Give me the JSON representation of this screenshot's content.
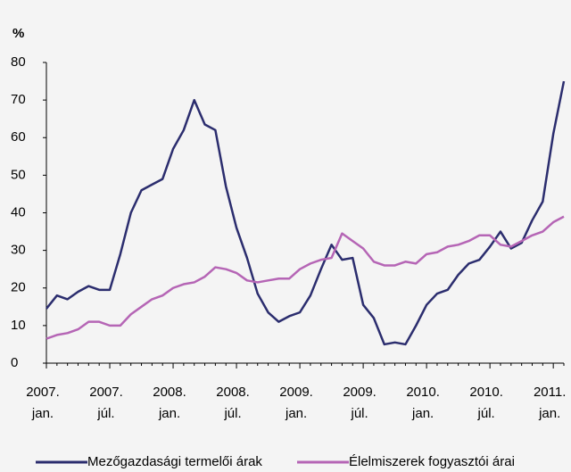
{
  "chart_data": {
    "type": "line",
    "y_label": "%",
    "categories": [
      "2007. jan.",
      null,
      null,
      null,
      null,
      null,
      "2007. júl.",
      null,
      null,
      null,
      null,
      null,
      "2008. jan.",
      null,
      null,
      null,
      null,
      null,
      "2008. júl.",
      null,
      null,
      null,
      null,
      null,
      "2009. jan.",
      null,
      null,
      null,
      null,
      null,
      "2009. júl.",
      null,
      null,
      null,
      null,
      null,
      "2010. jan.",
      null,
      null,
      null,
      null,
      null,
      "2010. júl.",
      null,
      null,
      null,
      null,
      null,
      "2011. jan.",
      null
    ],
    "series": [
      {
        "name": "Mezőgazdasági termelői árak",
        "color": "#2b2d6e",
        "values": [
          14.5,
          18,
          17,
          19,
          20.5,
          19.5,
          19.5,
          29,
          40,
          46,
          47.5,
          49,
          57,
          62,
          70,
          63.5,
          62,
          47,
          36,
          28,
          18.5,
          13.5,
          11,
          12.5,
          13.5,
          18,
          25,
          31.5,
          27.5,
          28,
          15.5,
          12,
          5,
          5.5,
          5,
          10,
          15.5,
          18.5,
          19.5,
          23.5,
          26.5,
          27.5,
          31,
          35,
          30.5,
          32,
          38,
          43,
          61,
          75
        ]
      },
      {
        "name": "Élelmiszerek fogyasztói árai",
        "color": "#b565b5",
        "values": [
          6.5,
          7.5,
          8,
          9,
          11,
          11,
          10,
          10,
          13,
          15,
          17,
          18,
          20,
          21,
          21.5,
          23,
          25.5,
          25,
          24,
          22,
          21.5,
          22,
          22.5,
          22.5,
          25,
          26.5,
          27.5,
          28,
          34.5,
          32.5,
          30.5,
          27,
          26,
          26,
          27,
          26.5,
          29,
          29.5,
          31,
          31.5,
          32.5,
          34,
          34,
          31.5,
          31,
          32.5,
          34,
          35,
          37.5,
          39
        ]
      }
    ],
    "ylim": [
      0,
      80
    ],
    "yticks": [
      0,
      10,
      20,
      30,
      40,
      50,
      60,
      70,
      80
    ],
    "grid": false
  }
}
